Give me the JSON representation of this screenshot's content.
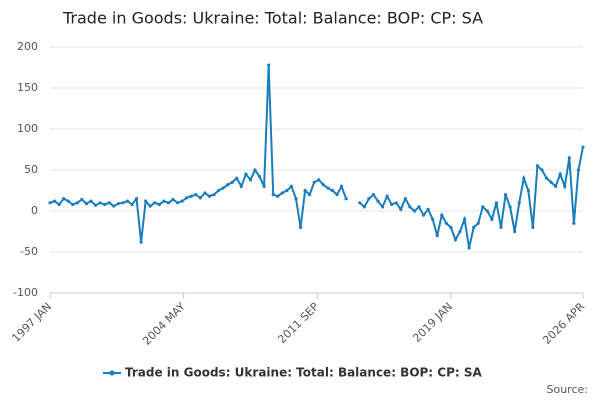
{
  "chart_data": {
    "type": "line",
    "title": "Trade in Goods: Ukraine: Total: Balance: BOP: CP: SA",
    "source": "Source:",
    "x": [
      "1997 JAN",
      "1997 APR",
      "1997 JUL",
      "1997 OCT",
      "1998 JAN",
      "1998 APR",
      "1998 JUL",
      "1998 OCT",
      "1999 JAN",
      "1999 APR",
      "1999 JUL",
      "1999 OCT",
      "2000 JAN",
      "2000 APR",
      "2000 JUL",
      "2000 OCT",
      "2001 JAN",
      "2001 APR",
      "2001 JUL",
      "2001 OCT",
      "2002 JAN",
      "2002 APR",
      "2002 JUL",
      "2002 OCT",
      "2003 JAN",
      "2003 APR",
      "2003 JUL",
      "2003 OCT",
      "2004 JAN",
      "2004 APR",
      "2004 JUL",
      "2004 OCT",
      "2005 JAN",
      "2005 APR",
      "2005 JUL",
      "2005 OCT",
      "2006 JAN",
      "2006 APR",
      "2006 JUL",
      "2006 OCT",
      "2007 JAN",
      "2007 APR",
      "2007 JUL",
      "2007 OCT",
      "2008 JAN",
      "2008 APR",
      "2008 JUL",
      "2008 OCT",
      "2009 JAN",
      "2009 APR",
      "2009 JUL",
      "2009 OCT",
      "2010 JAN",
      "2010 APR",
      "2010 JUL",
      "2010 OCT",
      "2011 JAN",
      "2011 APR",
      "2011 JUL",
      "2011 OCT",
      "2012 JAN",
      "2012 APR",
      "2012 JUL",
      "2012 OCT",
      "2013 JAN",
      "2013 APR",
      "2013 JUL",
      "2013 OCT",
      "2014 JAN",
      "2014 APR",
      "2014 JUL",
      "2014 OCT",
      "2015 JAN",
      "2015 APR",
      "2015 JUL",
      "2015 OCT",
      "2016 JAN",
      "2016 APR",
      "2016 JUL",
      "2016 OCT",
      "2017 JAN",
      "2017 APR",
      "2017 JUL",
      "2017 OCT",
      "2018 JAN",
      "2018 APR",
      "2018 JUL",
      "2018 OCT",
      "2019 JAN",
      "2019 APR",
      "2019 JUL",
      "2019 OCT",
      "2020 JAN",
      "2020 APR",
      "2020 JUL",
      "2020 OCT",
      "2021 JAN",
      "2021 APR",
      "2021 JUL",
      "2021 OCT",
      "2022 JAN",
      "2022 APR",
      "2022 JUL",
      "2022 OCT",
      "2023 JAN",
      "2023 APR",
      "2023 JUL",
      "2023 OCT",
      "2024 JAN",
      "2024 APR",
      "2024 JUL",
      "2024 OCT",
      "2025 JAN",
      "2025 APR",
      "2025 JUL",
      "2025 OCT",
      "2026 JAN",
      "2026 APR"
    ],
    "series": [
      {
        "name": "Trade in Goods: Ukraine: Total: Balance: BOP: CP: SA",
        "color": "#1a7dbd",
        "values": [
          10,
          12,
          8,
          15,
          12,
          8,
          10,
          14,
          9,
          12,
          7,
          10,
          8,
          10,
          6,
          9,
          10,
          12,
          8,
          15,
          -38,
          12,
          6,
          10,
          8,
          12,
          10,
          14,
          10,
          12,
          16,
          18,
          20,
          16,
          22,
          18,
          20,
          25,
          28,
          32,
          35,
          40,
          30,
          45,
          38,
          50,
          42,
          30,
          178,
          20,
          18,
          22,
          25,
          30,
          15,
          -20,
          25,
          20,
          35,
          38,
          32,
          28,
          25,
          20,
          30,
          15,
          null,
          null,
          10,
          5,
          15,
          20,
          12,
          5,
          18,
          8,
          10,
          2,
          15,
          5,
          0,
          5,
          -5,
          2,
          -10,
          -30,
          -5,
          -15,
          -20,
          -35,
          -25,
          -10,
          -45,
          -20,
          -15,
          5,
          0,
          -10,
          10,
          -20,
          20,
          5,
          -25,
          10,
          40,
          25,
          -20,
          55,
          50,
          40,
          35,
          30,
          45,
          30,
          65,
          -15,
          50,
          78
        ]
      }
    ],
    "xlim": [
      "1997 JAN",
      "2026 APR"
    ],
    "xticks": [
      "1997 JAN",
      "2004 MAY",
      "2011 SEP",
      "2019 JAN",
      "2026 APR"
    ],
    "ylim": [
      -100,
      200
    ],
    "yticks": [
      -100,
      -50,
      0,
      50,
      100,
      150,
      200
    ],
    "grid": true
  }
}
